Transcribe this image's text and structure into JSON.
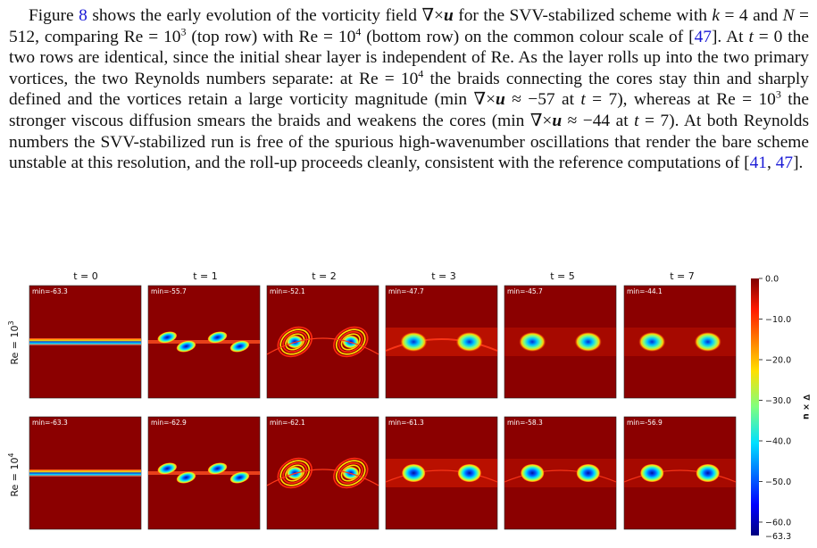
{
  "paragraph": {
    "figure_ref": "8",
    "cite_a": "47",
    "cite_b1": "41",
    "cite_b2": "47"
  },
  "figure": {
    "col_titles": [
      "t = 0",
      "t = 1",
      "t = 2",
      "t = 3",
      "t = 5",
      "t = 7"
    ],
    "row_labels": [
      {
        "base": "Re = 10",
        "exp": "3"
      },
      {
        "base": "Re = 10",
        "exp": "4"
      }
    ],
    "mins": [
      [
        "min=-63.3",
        "min=-55.7",
        "min=-52.1",
        "min=-47.7",
        "min=-45.7",
        "min=-44.1"
      ],
      [
        "min=-63.3",
        "min=-62.9",
        "min=-62.1",
        "min=-61.3",
        "min=-58.3",
        "min=-56.9"
      ]
    ],
    "colorbar": {
      "label": "∇ × u",
      "ticks": [
        "0.0",
        "−10.0",
        "−20.0",
        "−30.0",
        "−40.0",
        "−50.0",
        "−60.0"
      ],
      "tick_values": [
        0,
        -10,
        -20,
        -30,
        -40,
        -50,
        -60
      ],
      "min_label": "−63.3",
      "min_value": -63.3
    },
    "colors": {
      "background": "#8b0000",
      "braid": "#ff3a1a",
      "core_edge": "#ffe000",
      "core_mid": "#00e0ff",
      "core_center": "#0010a0"
    }
  }
}
